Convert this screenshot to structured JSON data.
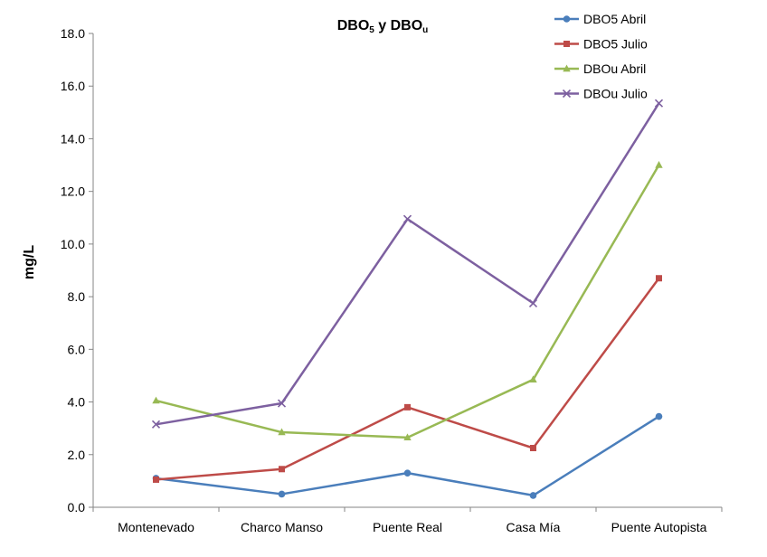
{
  "chart_data": {
    "type": "line",
    "title": {
      "main1": "DBO",
      "sub1": "5",
      "mid": " y DBO",
      "sub2": "u"
    },
    "ylabel": "mg/L",
    "xlabel": "",
    "categories": [
      "Montenevado",
      "Charco Manso",
      "Puente Real",
      "Casa Mía",
      "Puente Autopista"
    ],
    "ylim": [
      0,
      18
    ],
    "yticks": [
      "0.0",
      "2.0",
      "4.0",
      "6.0",
      "8.0",
      "10.0",
      "12.0",
      "14.0",
      "16.0",
      "18.0"
    ],
    "grid": false,
    "legend_position": "top-right",
    "series": [
      {
        "name": "DBO5 Abril",
        "color": "#4a7ebb",
        "marker": "circle",
        "values": [
          1.1,
          0.5,
          1.3,
          0.45,
          3.45
        ]
      },
      {
        "name": "DBO5 Julio",
        "color": "#be4b48",
        "marker": "square",
        "values": [
          1.05,
          1.45,
          3.8,
          2.25,
          8.7
        ]
      },
      {
        "name": "DBOu Abril",
        "color": "#98b954",
        "marker": "triangle",
        "values": [
          4.05,
          2.85,
          2.65,
          4.85,
          13.0
        ]
      },
      {
        "name": "DBOu Julio",
        "color": "#7d60a0",
        "marker": "x",
        "values": [
          3.15,
          3.95,
          10.95,
          7.75,
          15.35
        ]
      }
    ]
  }
}
